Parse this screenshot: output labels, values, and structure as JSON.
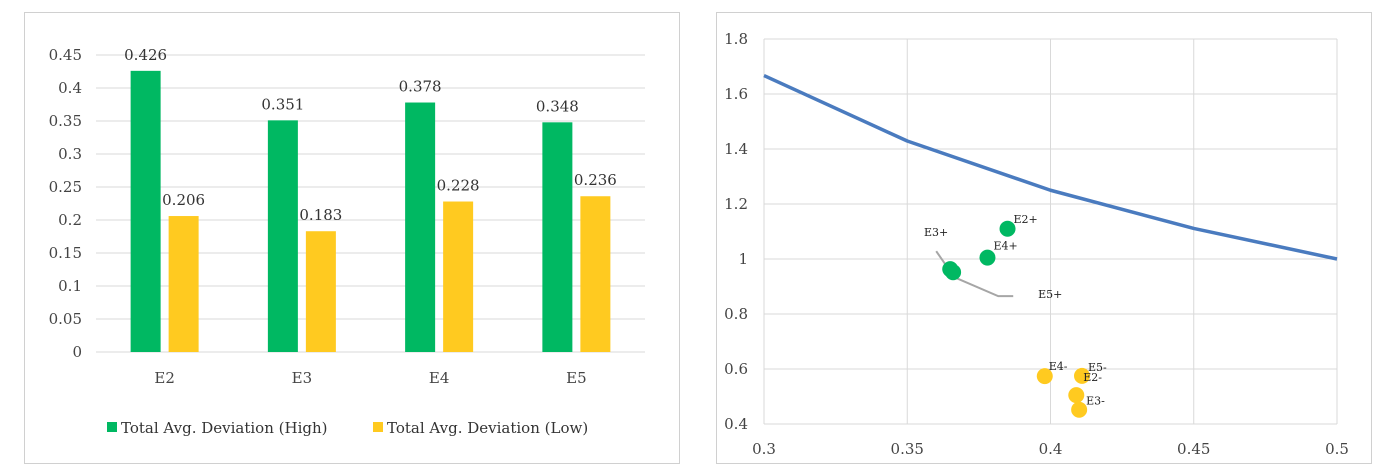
{
  "colors": {
    "high": "#00b862",
    "low": "#ffca20",
    "curve": "#4a7bbf",
    "pointer": "#a6a6a6",
    "grid": "#d9d9d9"
  },
  "chart_data": [
    {
      "type": "bar",
      "categories": [
        "E2",
        "E3",
        "E4",
        "E5"
      ],
      "series": [
        {
          "name": "Total Avg. Deviation (High)",
          "values": [
            0.426,
            0.351,
            0.378,
            0.348
          ],
          "labels": [
            "0.426",
            "0.351",
            "0.378",
            "0.348"
          ]
        },
        {
          "name": "Total Avg. Deviation (Low)",
          "values": [
            0.206,
            0.183,
            0.228,
            0.236
          ],
          "labels": [
            "0.206",
            "0.183",
            "0.228",
            "0.236"
          ]
        }
      ],
      "ylim": [
        0,
        0.45
      ],
      "yticks": [
        "0",
        "0.05",
        "0.1",
        "0.15",
        "0.2",
        "0.25",
        "0.3",
        "0.35",
        "0.4",
        "0.45"
      ],
      "grid": true,
      "legend": "bottom"
    },
    {
      "type": "scatter",
      "xlim": [
        0.3,
        0.5
      ],
      "ylim": [
        0.4,
        1.8
      ],
      "xticks": [
        "0.3",
        "0.35",
        "0.4",
        "0.45",
        "0.5"
      ],
      "yticks": [
        "0.4",
        "0.6",
        "0.8",
        "1",
        "1.2",
        "1.4",
        "1.6",
        "1.8"
      ],
      "grid": true,
      "line": {
        "x": [
          0.3,
          0.35,
          0.4,
          0.45,
          0.5
        ],
        "y": [
          1.667,
          1.429,
          1.25,
          1.111,
          1.0
        ]
      },
      "points": [
        {
          "label": "E2+",
          "x": 0.385,
          "y": 1.11,
          "group": "high"
        },
        {
          "label": "E3+",
          "x": 0.365,
          "y": 0.963,
          "group": "high"
        },
        {
          "label": "E4+",
          "x": 0.378,
          "y": 1.005,
          "group": "high"
        },
        {
          "label": "E5+",
          "x": 0.366,
          "y": 0.952,
          "group": "high"
        },
        {
          "label": "E4-",
          "x": 0.398,
          "y": 0.574,
          "group": "low"
        },
        {
          "label": "E5-",
          "x": 0.411,
          "y": 0.575,
          "group": "low"
        },
        {
          "label": "E2-",
          "x": 0.409,
          "y": 0.505,
          "group": "low"
        },
        {
          "label": "E3-",
          "x": 0.41,
          "y": 0.452,
          "group": "low"
        }
      ]
    }
  ]
}
